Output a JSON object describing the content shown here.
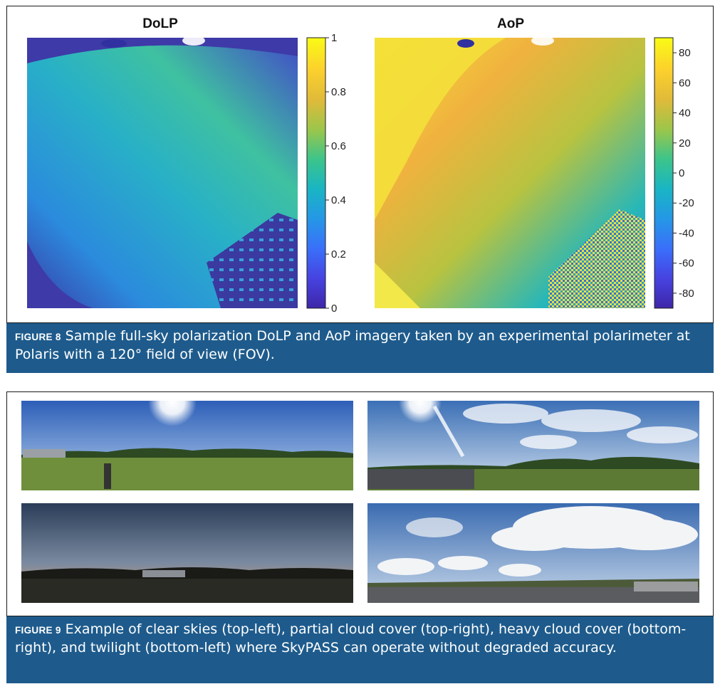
{
  "figure8": {
    "label": "FIGURE 8",
    "caption": "Sample full-sky polarization DoLP and AoP imagery taken by an experimental polarimeter at Polaris with a 120° field of view (FOV).",
    "panels": [
      {
        "title": "DoLP",
        "colorbar_ticks": [
          "1",
          "0.8",
          "0.6",
          "0.4",
          "0.2",
          "0"
        ],
        "colorbar_range": [
          0,
          1
        ],
        "colormap": [
          "#3e26a8",
          "#4743e1",
          "#3a6ffa",
          "#2597e6",
          "#19b5c4",
          "#3cc48b",
          "#9bc64b",
          "#e0ba3a",
          "#fcd02d",
          "#f9fb15"
        ]
      },
      {
        "title": "AoP",
        "colorbar_ticks": [
          "80",
          "60",
          "40",
          "20",
          "0",
          "-20",
          "-40",
          "-60",
          "-80"
        ],
        "colorbar_range": [
          -90,
          90
        ],
        "colormap": [
          "#3e26a8",
          "#4743e1",
          "#3a6ffa",
          "#2597e6",
          "#19b5c4",
          "#3cc48b",
          "#9bc64b",
          "#e0ba3a",
          "#fcd02d",
          "#f9fb15"
        ]
      }
    ]
  },
  "figure9": {
    "label": "FIGURE 9",
    "caption": "Example of clear skies (top-left), partial cloud cover (top-right), heavy cloud cover (bottom-right), and twilight (bottom-left) where SkyPASS can operate without degraded accuracy.",
    "photos": [
      {
        "id": "clear-skies",
        "sky_top": "#2d5fb8",
        "sky_bottom": "#a9c8e8",
        "ground": "#6f8f3c"
      },
      {
        "id": "partial-cloud",
        "sky_top": "#3b6fb6",
        "sky_bottom": "#c8d8ea",
        "ground": "#5d7a35"
      },
      {
        "id": "twilight",
        "sky_top": "#243a5a",
        "sky_bottom": "#d8a46a",
        "ground": "#2a2a24"
      },
      {
        "id": "heavy-cloud",
        "sky_top": "#3a6bb0",
        "sky_bottom": "#e6ecf2",
        "ground": "#4d5a3a"
      }
    ]
  }
}
